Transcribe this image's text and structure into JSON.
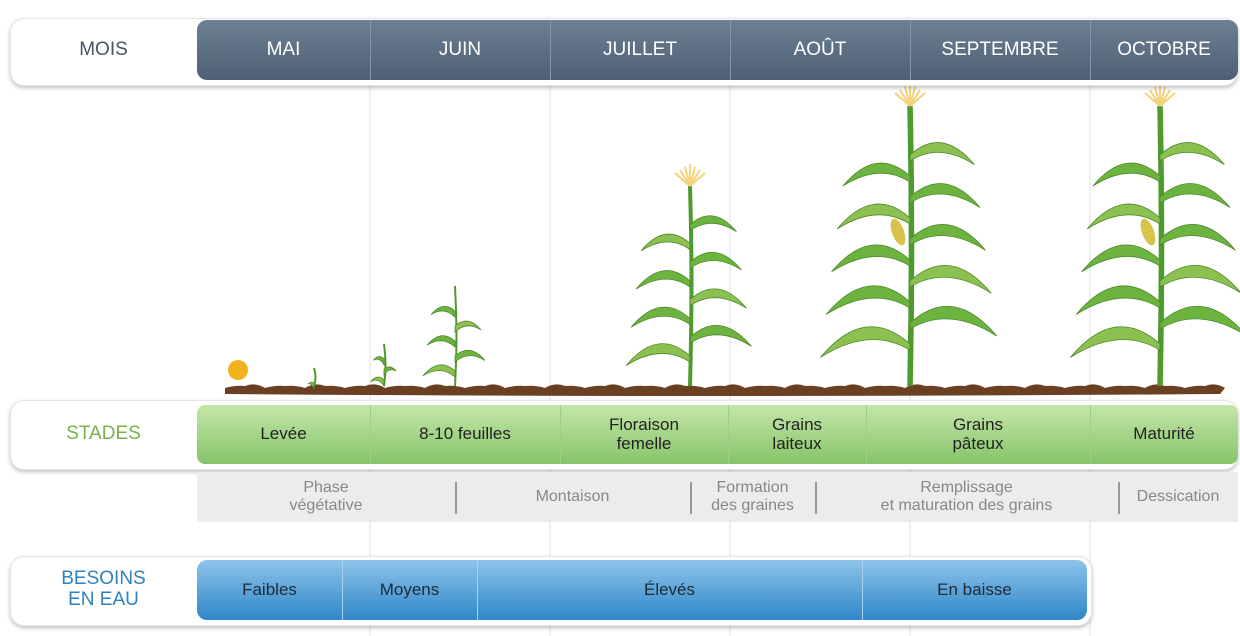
{
  "months": {
    "label": "MOIS",
    "items": [
      "MAI",
      "JUIN",
      "JUILLET",
      "AOÛT",
      "SEPTEMBRE",
      "OCTOBRE"
    ]
  },
  "stages": {
    "label": "STADES",
    "items": [
      "Levée",
      "8-10 feuilles",
      "Floraison\nfemelle",
      "Grains\nlaiteux",
      "Grains\npâteux",
      "Maturité"
    ]
  },
  "phases": {
    "items": [
      "Phase\nvégétative",
      "Montaison",
      "Formation\ndes graines",
      "Remplissage\net maturation des grains",
      "Dessication"
    ]
  },
  "water": {
    "label": "BESOINS\nEN EAU",
    "items": [
      "Faibles",
      "Moyens",
      "Élevés",
      "En baisse"
    ]
  }
}
